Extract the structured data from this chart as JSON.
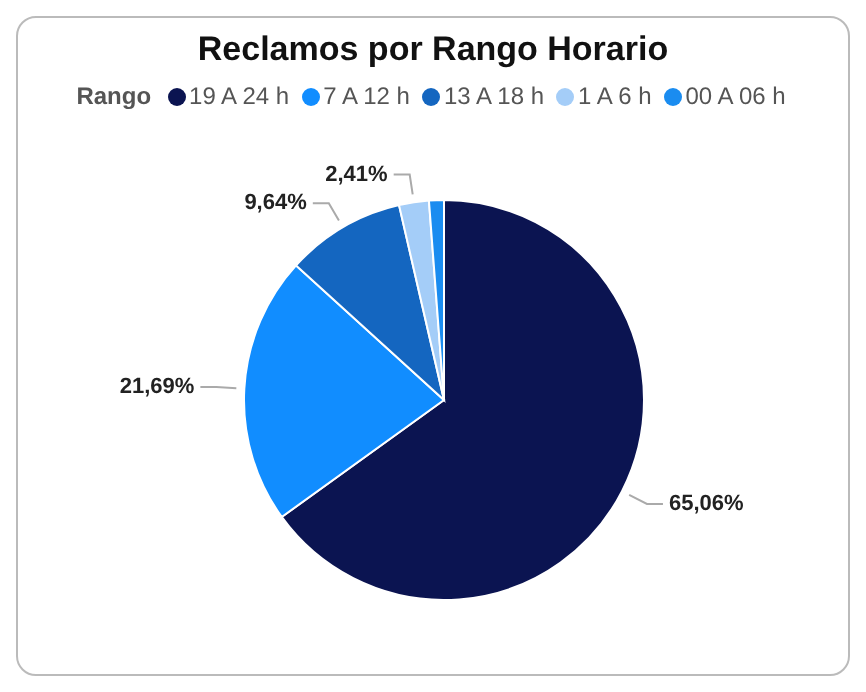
{
  "chart_data": {
    "type": "pie",
    "title": "Reclamos por Rango Horario",
    "legend_title": "Rango",
    "legend": "top",
    "categories": [
      "19 A 24 h",
      "7 A 12 h",
      "13 A 18 h",
      "1 A 6 h",
      "00 A 06 h"
    ],
    "values": [
      65.06,
      21.69,
      9.64,
      2.41,
      1.2
    ],
    "colors": [
      "#0b1451",
      "#118dff",
      "#1466c0",
      "#a4cdf8",
      "#1a8cf0"
    ],
    "value_labels": [
      "65,06%",
      "21,69%",
      "9,64%",
      "2,41%",
      null
    ]
  }
}
